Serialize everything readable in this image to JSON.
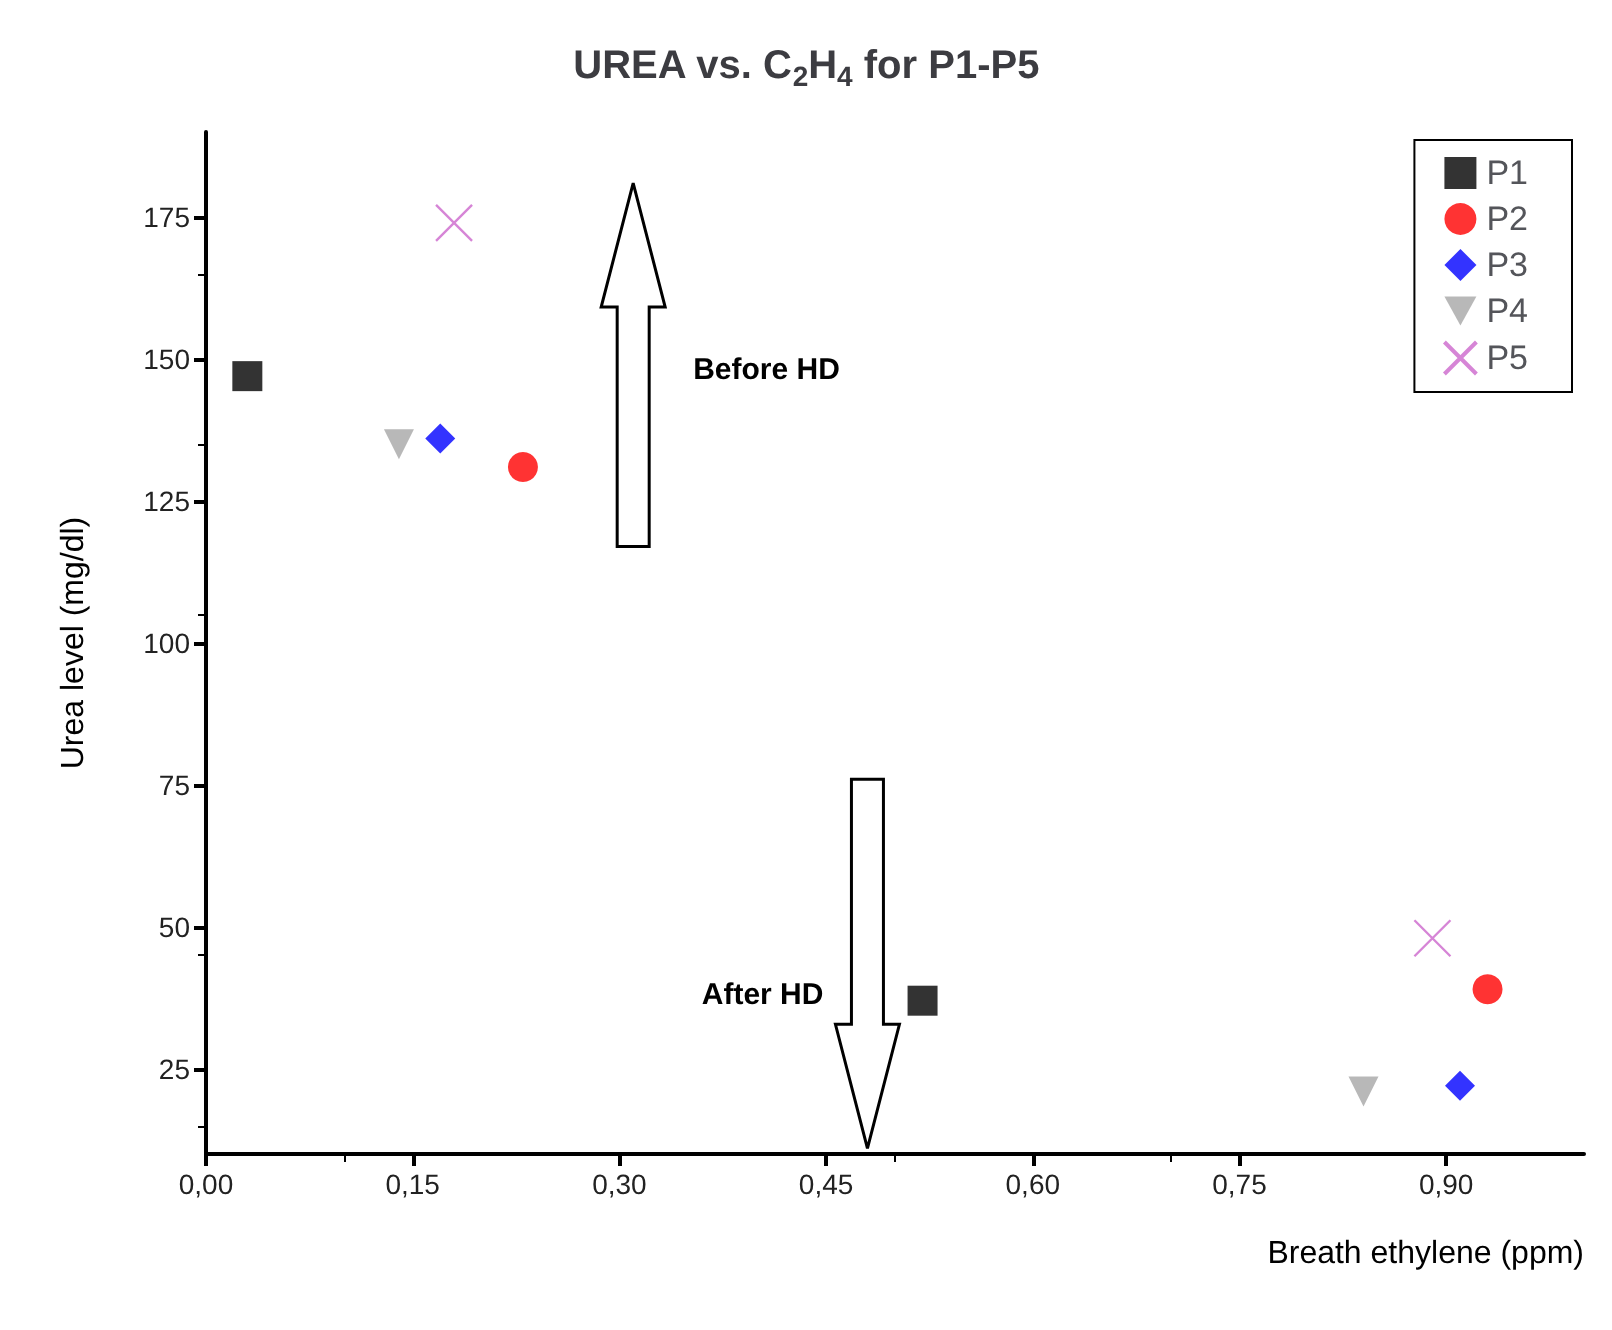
{
  "chart_data": {
    "type": "scatter",
    "title": "UREA vs. C$_{2}$H$_{4}$ for P1-P5",
    "xlabel": "Breath ethylene (ppm)",
    "ylabel": "Urea level (mg/dl)",
    "xlim": [
      0,
      1.0
    ],
    "xticks": [
      {
        "value": 0,
        "label": "0,00"
      },
      {
        "value": 0.15,
        "label": "0,15"
      },
      {
        "value": 0.3,
        "label": "0,30"
      },
      {
        "value": 0.45,
        "label": "0,45"
      },
      {
        "value": 0.6,
        "label": "0,60"
      },
      {
        "value": 0.75,
        "label": "0,75"
      },
      {
        "value": 0.9,
        "label": "0,90"
      }
    ],
    "ylim": [
      10,
      190
    ],
    "yticks": [
      25,
      50,
      75,
      100,
      125,
      150,
      175
    ],
    "grid": false,
    "legend": "top right",
    "annotations": [
      "Before HD",
      "After HD"
    ],
    "series": [
      {
        "name": "P1",
        "color": "#000000",
        "marker": "square",
        "x": [
          0.03,
          0.52
        ],
        "values": [
          147,
          37
        ]
      },
      {
        "name": "P2",
        "color": "#ff0000",
        "marker": "circle",
        "x": [
          0.23,
          0.93
        ],
        "values": [
          131,
          39
        ]
      },
      {
        "name": "P3",
        "color": "#0000ff",
        "marker": "diamond",
        "x": [
          0.17,
          0.91
        ],
        "values": [
          136,
          22
        ]
      },
      {
        "name": "P4",
        "color": "#a6a6a6",
        "marker": "triangle",
        "x": [
          0.14,
          0.84
        ],
        "values": [
          135,
          21
        ]
      },
      {
        "name": "P5",
        "color": "#cc66cc",
        "marker": "cross",
        "x": [
          0.18,
          0.89
        ],
        "values": [
          174,
          48
        ]
      }
    ]
  }
}
